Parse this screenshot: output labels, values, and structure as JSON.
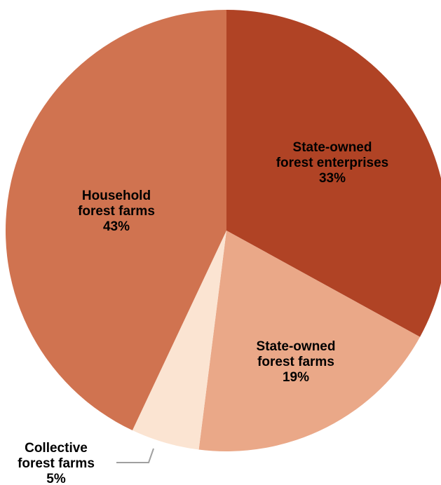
{
  "chart_data": {
    "type": "pie",
    "title": "",
    "start_angle_deg": 0,
    "direction": "clockwise",
    "slices": [
      {
        "label_lines": [
          "State-owned",
          "forest enterprises"
        ],
        "value": 33,
        "value_label": "33%",
        "color": "#b04325"
      },
      {
        "label_lines": [
          "State-owned",
          "forest farms"
        ],
        "value": 19,
        "value_label": "19%",
        "color": "#eaa888"
      },
      {
        "label_lines": [
          "Collective",
          "forest farms"
        ],
        "value": 5,
        "value_label": "5%",
        "color": "#fbe4d2"
      },
      {
        "label_lines": [
          "Household",
          "forest farms"
        ],
        "value": 43,
        "value_label": "43%",
        "color": "#d07350"
      }
    ],
    "leader_line_color": "#a0a0a0"
  }
}
